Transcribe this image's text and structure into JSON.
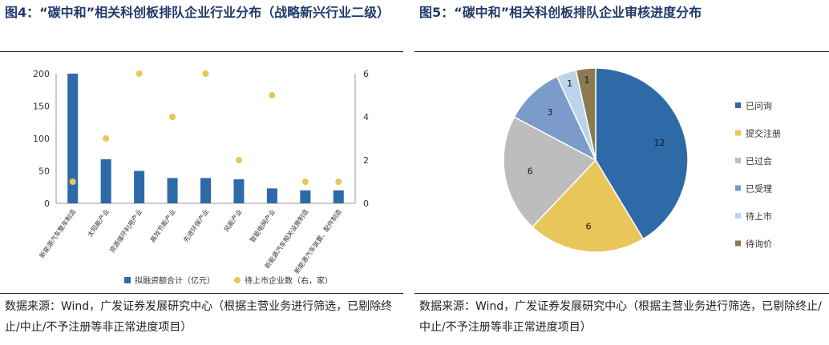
{
  "left": {
    "title": "图4：“碳中和”相关科创板排队企业行业分布（战略新兴行业二级）",
    "source": "数据来源：Wind，广发证券发展研究中心（根据主营业务进行筛选，已剔除终止/中止/不予注册等非正常进度项目）",
    "colors": {
      "bar": "#2e6aa8",
      "dot": "#e8c65a"
    }
  },
  "right": {
    "title": "图5：“碳中和”相关科创板排队企业审核进度分布",
    "source": "数据来源：Wind，广发证券发展研究中心（根据主营业务进行筛选，已剔除终止/中止/不予注册等非正常进度项目）"
  },
  "chart_data": [
    {
      "type": "bar",
      "categories": [
        "新能源汽车整车制造",
        "太阳能产业",
        "资源循环利用产业",
        "高效节能产业",
        "先进环保产业",
        "风能产业",
        "智能电网产业",
        "新能源汽车相关设施制造",
        "新能源汽车装置、配件制造"
      ],
      "series": [
        {
          "name": "拟融资额合计（亿元）",
          "type": "bar",
          "axis": "left",
          "values": [
            200,
            68,
            50,
            39,
            39,
            37,
            23,
            20,
            20
          ]
        },
        {
          "name": "待上市企业数（右，家）",
          "type": "scatter",
          "axis": "right",
          "values": [
            1,
            3,
            6,
            4,
            6,
            2,
            5,
            1,
            1
          ]
        }
      ],
      "ylim": [
        0,
        200
      ],
      "yticks": [
        0,
        50,
        100,
        150,
        200
      ],
      "y2lim": [
        0,
        6
      ],
      "y2ticks": [
        0,
        2,
        4,
        6
      ],
      "legend": "bottom"
    },
    {
      "type": "pie",
      "labels": [
        "已问询",
        "提交注册",
        "已过会",
        "已受理",
        "待上市",
        "待询价"
      ],
      "values": [
        12,
        6,
        6,
        3,
        1,
        1
      ],
      "colors": [
        "#2e6aa8",
        "#e8c65a",
        "#bdbdbd",
        "#7b9ccb",
        "#bcd3ea",
        "#8c7a50"
      ],
      "legend": "right"
    }
  ]
}
